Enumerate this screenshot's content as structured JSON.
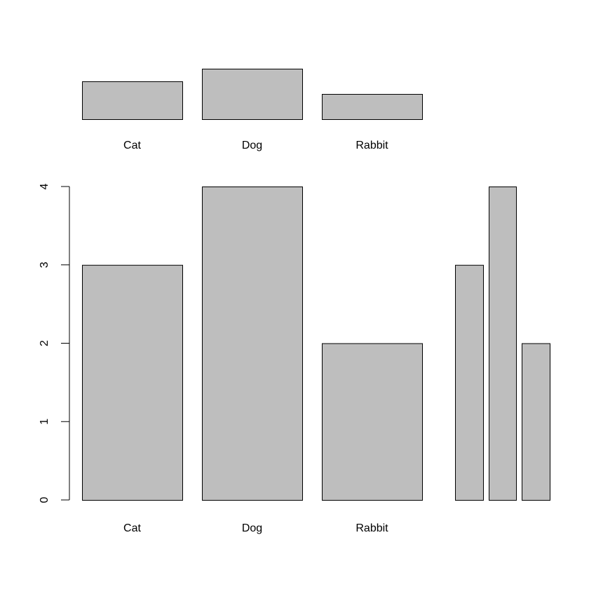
{
  "chart_data": [
    {
      "type": "bar",
      "categories": [
        "Cat",
        "Dog",
        "Rabbit"
      ],
      "values": [
        3,
        4,
        2
      ],
      "color": "#bebebe",
      "ylim": [
        0,
        4
      ]
    },
    {
      "type": "bar",
      "categories": [
        "Cat",
        "Dog",
        "Rabbit"
      ],
      "values": [
        3,
        4,
        2
      ],
      "color": "#bebebe",
      "ylim": [
        0,
        4
      ],
      "yticks": [
        0,
        1,
        2,
        3,
        4
      ]
    },
    {
      "type": "bar",
      "values": [
        3,
        4,
        2
      ],
      "color": "#bebebe",
      "ylim": [
        0,
        4
      ]
    }
  ]
}
